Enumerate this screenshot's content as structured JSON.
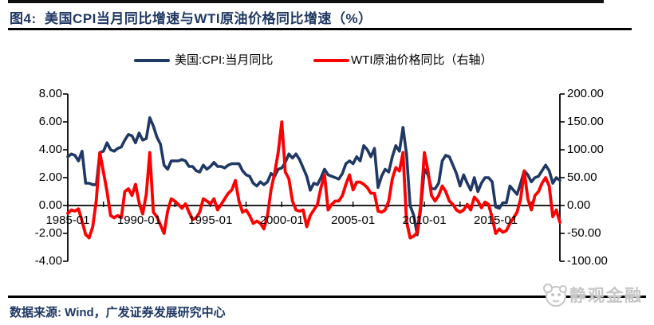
{
  "figure": {
    "title": "图4:  美国CPI当月同比增速与WTI原油价格同比增速（%）",
    "source_text": "数据来源: Wind，广发证券发展研究中心",
    "watermark_text": "静观金融"
  },
  "legend": {
    "items": [
      {
        "label": "美国:CPI:当月同比",
        "color": "#1f3864"
      },
      {
        "label": "WTI原油价格同比（右轴）",
        "color": "#fe0000"
      }
    ]
  },
  "colors": {
    "cpi_line": "#1f3864",
    "wti_line": "#fe0000",
    "axis": "#000000",
    "title_text": "#1f3864",
    "watermark_gray": "#c6c6c6"
  },
  "chart_data": {
    "type": "line",
    "title": "美国CPI当月同比增速与WTI原油价格同比增速（%）",
    "x_start": "1985-01",
    "x_end": "2019-07",
    "months_total": 415,
    "sample_step_months": 3,
    "grid": "off",
    "legend_position": "top",
    "left_axis": {
      "range": [
        -4,
        8
      ],
      "tick_values": [
        8,
        6,
        4,
        2,
        0,
        -2,
        -4
      ],
      "tick_labels": [
        "8.00",
        "6.00",
        "4.00",
        "2.00",
        "0.00",
        "-2.00",
        "-4.00"
      ]
    },
    "right_axis": {
      "range": [
        -100,
        200
      ],
      "tick_values": [
        200,
        150,
        100,
        50,
        0,
        -50,
        -100
      ],
      "tick_labels": [
        "200.00",
        "150.00",
        "100.00",
        "50.00",
        "0.00",
        "-50.00",
        "-100.00"
      ]
    },
    "x_axis": {
      "tick_labels": [
        "1985-01",
        "1990-01",
        "1995-01",
        "2000-01",
        "2005-01",
        "2010-01",
        "2015-01"
      ],
      "tick_label_month_index": [
        0,
        60,
        120,
        180,
        240,
        300,
        360
      ],
      "minor_tick_every_months": 30
    },
    "series": [
      {
        "name": "美国:CPI:当月同比",
        "axis": "left",
        "color": "#1f3864",
        "width": 3.6,
        "values": [
          3.5,
          3.7,
          3.6,
          3.2,
          3.9,
          1.6,
          1.6,
          1.5,
          1.5,
          3.8,
          3.9,
          4.5,
          4.0,
          3.9,
          4.1,
          4.2,
          4.7,
          5.1,
          5.0,
          4.5,
          5.2,
          4.7,
          4.8,
          6.3,
          5.7,
          4.9,
          4.4,
          2.9,
          2.6,
          3.2,
          3.2,
          3.2,
          3.3,
          3.2,
          2.8,
          2.8,
          2.5,
          2.4,
          2.9,
          2.6,
          2.8,
          3.1,
          2.8,
          2.8,
          2.7,
          2.9,
          3.0,
          3.0,
          3.0,
          2.5,
          2.2,
          2.1,
          1.6,
          1.4,
          1.7,
          1.5,
          1.7,
          2.3,
          2.1,
          2.6,
          2.7,
          3.1,
          3.7,
          3.4,
          3.7,
          3.3,
          2.7,
          2.1,
          1.1,
          1.6,
          1.5,
          2.0,
          2.6,
          2.2,
          2.1,
          2.0,
          1.9,
          2.3,
          3.0,
          3.2,
          3.0,
          3.5,
          3.2,
          4.3,
          4.0,
          3.5,
          4.1,
          1.3,
          2.1,
          2.6,
          2.4,
          3.5,
          4.3,
          3.9,
          5.6,
          3.7,
          0.0,
          -0.7,
          -2.1,
          -0.2,
          2.6,
          2.2,
          1.2,
          1.2,
          1.6,
          3.2,
          3.6,
          3.5,
          2.9,
          2.3,
          1.4,
          2.2,
          1.6,
          1.1,
          2.0,
          1.0,
          1.6,
          2.0,
          2.0,
          1.7,
          -0.1,
          -0.2,
          0.2,
          0.2,
          1.4,
          1.1,
          0.8,
          1.6,
          2.5,
          2.2,
          1.7,
          2.0,
          2.1,
          2.5,
          2.9,
          2.5,
          1.6,
          2.0,
          1.8
        ]
      },
      {
        "name": "WTI原油价格同比（右轴）",
        "axis": "right",
        "color": "#fe0000",
        "width": 3.8,
        "values": [
          -14,
          -8,
          -10,
          -6,
          -28,
          -52,
          -58,
          -38,
          10,
          95,
          60,
          25,
          -18,
          -22,
          -18,
          -22,
          25,
          30,
          18,
          38,
          5,
          -15,
          20,
          95,
          -12,
          -20,
          -35,
          -50,
          -10,
          12,
          8,
          2,
          -5,
          3,
          -12,
          -25,
          -22,
          -12,
          12,
          8,
          3,
          12,
          -8,
          2,
          12,
          22,
          28,
          45,
          8,
          -12,
          -8,
          -18,
          -32,
          -28,
          -32,
          -42,
          -18,
          28,
          58,
          95,
          150,
          60,
          48,
          8,
          -8,
          -10,
          -8,
          -38,
          -18,
          -8,
          2,
          32,
          55,
          -8,
          2,
          8,
          8,
          18,
          38,
          55,
          28,
          42,
          42,
          38,
          32,
          22,
          22,
          -10,
          -12,
          -8,
          8,
          48,
          68,
          62,
          95,
          -28,
          -58,
          -55,
          -48,
          2,
          95,
          62,
          18,
          8,
          18,
          35,
          25,
          8,
          2,
          -8,
          -12,
          -8,
          2,
          -8,
          15,
          8,
          -4,
          6,
          2,
          -22,
          -50,
          -42,
          -48,
          -45,
          -32,
          -22,
          -12,
          12,
          62,
          12,
          -8,
          18,
          25,
          40,
          50,
          35,
          -20,
          -8,
          -30
        ]
      }
    ]
  }
}
